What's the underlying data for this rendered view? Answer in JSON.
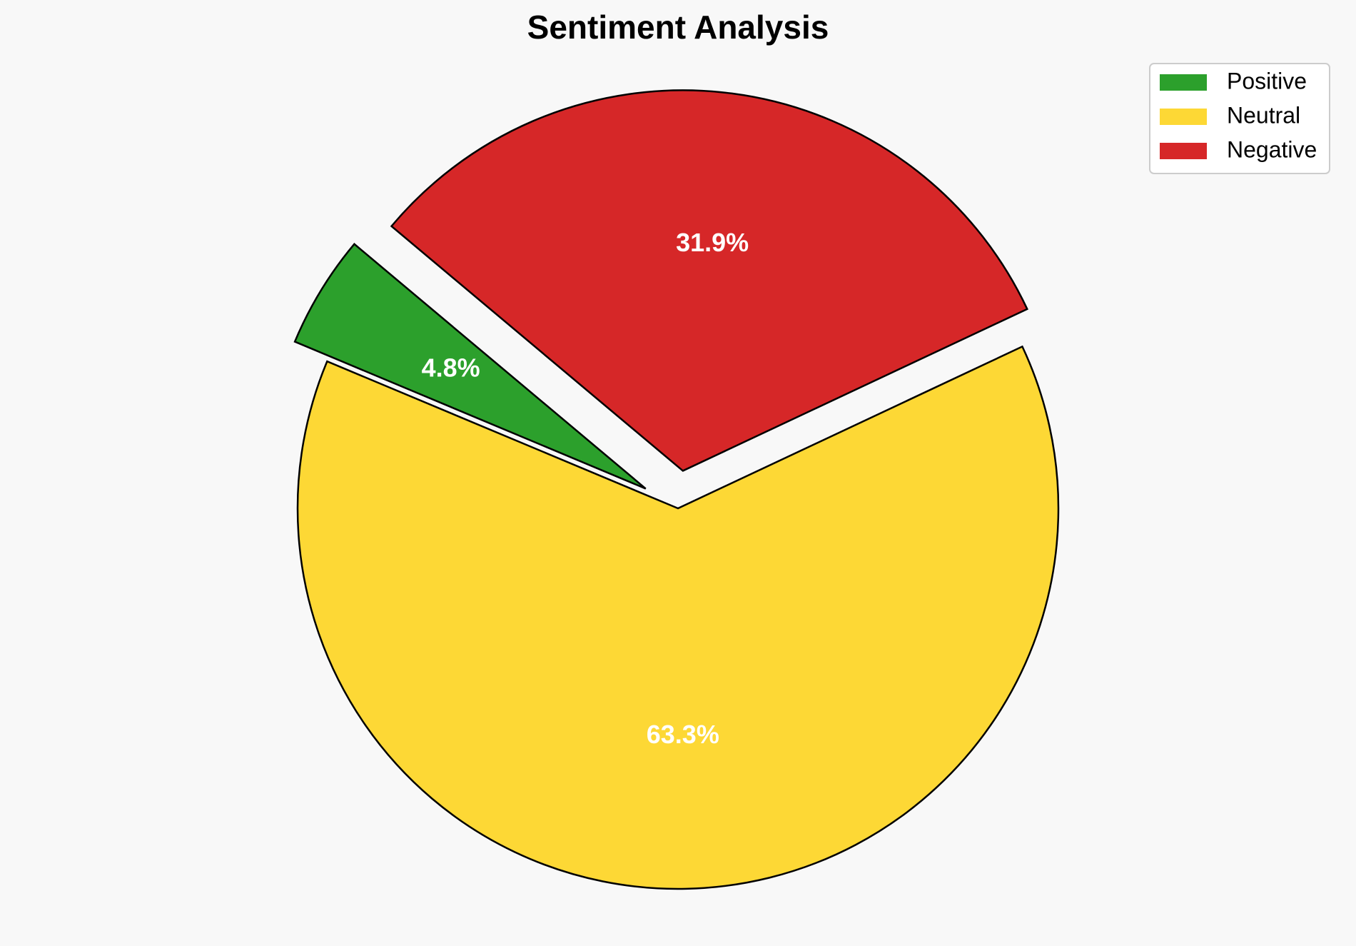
{
  "chart_data": {
    "type": "pie",
    "title": "Sentiment Analysis",
    "slices": [
      {
        "label": "Positive",
        "value": 4.8,
        "value_label": "4.8%",
        "color": "#2ca02c",
        "exploded": true
      },
      {
        "label": "Neutral",
        "value": 63.3,
        "value_label": "63.3%",
        "color": "#fdd835",
        "exploded": false
      },
      {
        "label": "Negative",
        "value": 31.9,
        "value_label": "31.9%",
        "color": "#d62728",
        "exploded": true
      }
    ],
    "legend_position": "top-right",
    "slice_edge_color": "#000000"
  },
  "background_color": "#f8f8f8"
}
